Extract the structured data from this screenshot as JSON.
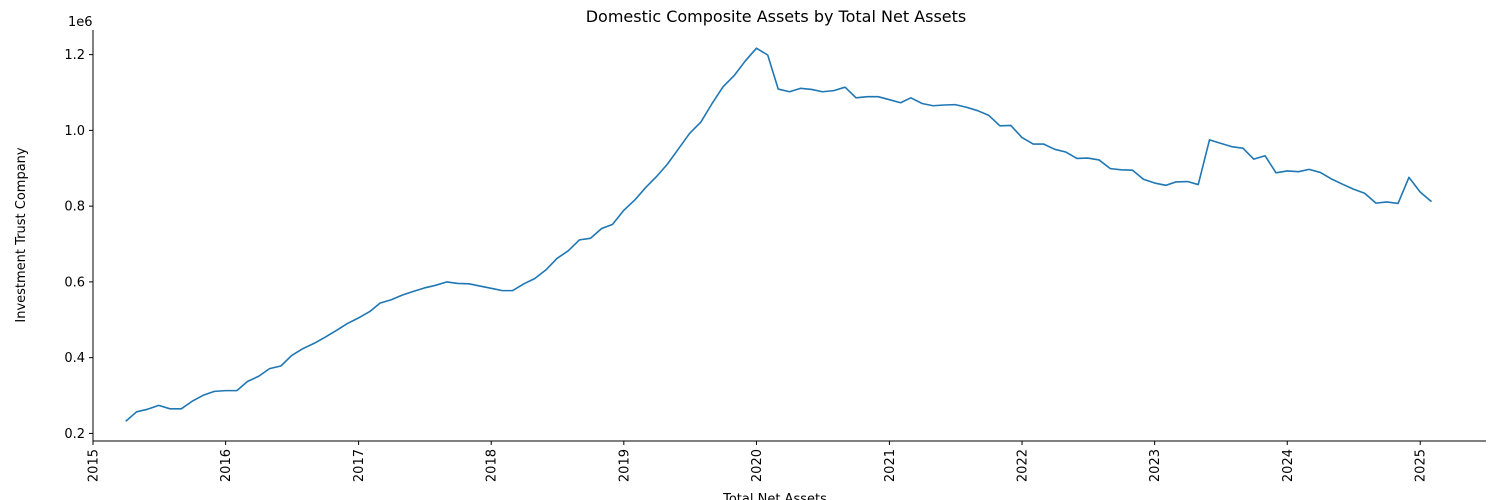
{
  "chart_data": {
    "type": "line",
    "title": "Domestic Composite Assets by Total Net Assets",
    "xlabel": "Total Net Assets",
    "ylabel": "Investment Trust Company",
    "y_offset_label": "1e6",
    "xlim": [
      "2015-01-01",
      "2025-07-01"
    ],
    "ylim": [
      0.18,
      1.265
    ],
    "x_ticks": [
      "2015",
      "2016",
      "2017",
      "2018",
      "2019",
      "2020",
      "2021",
      "2022",
      "2023",
      "2024",
      "2025"
    ],
    "y_ticks": [
      "0.2",
      "0.4",
      "0.6",
      "0.8",
      "1.0",
      "1.2"
    ],
    "grid": false,
    "line_color": "#1f77b4",
    "x": [
      "2015-04-01",
      "2015-05-01",
      "2015-06-01",
      "2015-07-01",
      "2015-08-01",
      "2015-09-01",
      "2015-10-01",
      "2015-11-01",
      "2015-12-01",
      "2016-01-01",
      "2016-02-01",
      "2016-03-01",
      "2016-04-01",
      "2016-05-01",
      "2016-06-01",
      "2016-07-01",
      "2016-08-01",
      "2016-09-01",
      "2016-10-01",
      "2016-11-01",
      "2016-12-01",
      "2017-01-01",
      "2017-02-01",
      "2017-03-01",
      "2017-04-01",
      "2017-05-01",
      "2017-06-01",
      "2017-07-01",
      "2017-08-01",
      "2017-09-01",
      "2017-10-01",
      "2017-11-01",
      "2017-12-01",
      "2018-01-01",
      "2018-02-01",
      "2018-03-01",
      "2018-04-01",
      "2018-05-01",
      "2018-06-01",
      "2018-07-01",
      "2018-08-01",
      "2018-09-01",
      "2018-10-01",
      "2018-11-01",
      "2018-12-01",
      "2019-01-01",
      "2019-02-01",
      "2019-03-01",
      "2019-04-01",
      "2019-05-01",
      "2019-06-01",
      "2019-07-01",
      "2019-08-01",
      "2019-09-01",
      "2019-10-01",
      "2019-11-01",
      "2019-12-01",
      "2020-01-01",
      "2020-02-01",
      "2020-03-01",
      "2020-04-01",
      "2020-05-01",
      "2020-06-01",
      "2020-07-01",
      "2020-08-01",
      "2020-09-01",
      "2020-10-01",
      "2020-11-01",
      "2020-12-01",
      "2021-01-01",
      "2021-02-01",
      "2021-03-01",
      "2021-04-01",
      "2021-05-01",
      "2021-06-01",
      "2021-07-01",
      "2021-08-01",
      "2021-09-01",
      "2021-10-01",
      "2021-11-01",
      "2021-12-01",
      "2022-01-01",
      "2022-02-01",
      "2022-03-01",
      "2022-04-01",
      "2022-05-01",
      "2022-06-01",
      "2022-07-01",
      "2022-08-01",
      "2022-09-01",
      "2022-10-01",
      "2022-11-01",
      "2022-12-01",
      "2023-01-01",
      "2023-02-01",
      "2023-03-01",
      "2023-04-01",
      "2023-05-01",
      "2023-06-01",
      "2023-07-01",
      "2023-08-01",
      "2023-09-01",
      "2023-10-01",
      "2023-11-01",
      "2023-12-01",
      "2024-01-01",
      "2024-02-01",
      "2024-03-01",
      "2024-04-01",
      "2024-05-01",
      "2024-06-01",
      "2024-07-01",
      "2024-08-01",
      "2024-09-01",
      "2024-10-01",
      "2024-11-01",
      "2024-12-01",
      "2025-01-01",
      "2025-02-01"
    ],
    "y": [
      0.232,
      0.257,
      0.264,
      0.274,
      0.265,
      0.265,
      0.285,
      0.301,
      0.311,
      0.313,
      0.313,
      0.337,
      0.351,
      0.371,
      0.378,
      0.406,
      0.424,
      0.438,
      0.454,
      0.472,
      0.49,
      0.505,
      0.522,
      0.544,
      0.553,
      0.565,
      0.575,
      0.584,
      0.591,
      0.6,
      0.596,
      0.595,
      0.589,
      0.583,
      0.577,
      0.577,
      0.595,
      0.609,
      0.632,
      0.662,
      0.682,
      0.711,
      0.715,
      0.741,
      0.752,
      0.789,
      0.817,
      0.848,
      0.878,
      0.911,
      0.952,
      0.992,
      1.022,
      1.071,
      1.115,
      1.145,
      1.183,
      1.217,
      1.199,
      1.109,
      1.102,
      1.111,
      1.108,
      1.102,
      1.105,
      1.114,
      1.086,
      1.089,
      1.089,
      1.081,
      1.073,
      1.086,
      1.071,
      1.065,
      1.067,
      1.068,
      1.061,
      1.052,
      1.04,
      1.012,
      1.013,
      0.981,
      0.964,
      0.964,
      0.95,
      0.943,
      0.926,
      0.927,
      0.922,
      0.899,
      0.896,
      0.895,
      0.871,
      0.861,
      0.855,
      0.864,
      0.865,
      0.857,
      0.975,
      0.966,
      0.957,
      0.953,
      0.924,
      0.933,
      0.888,
      0.893,
      0.891,
      0.897,
      0.889,
      0.872,
      0.858,
      0.845,
      0.834,
      0.808,
      0.811,
      0.807,
      0.876,
      0.837,
      0.812
    ]
  }
}
